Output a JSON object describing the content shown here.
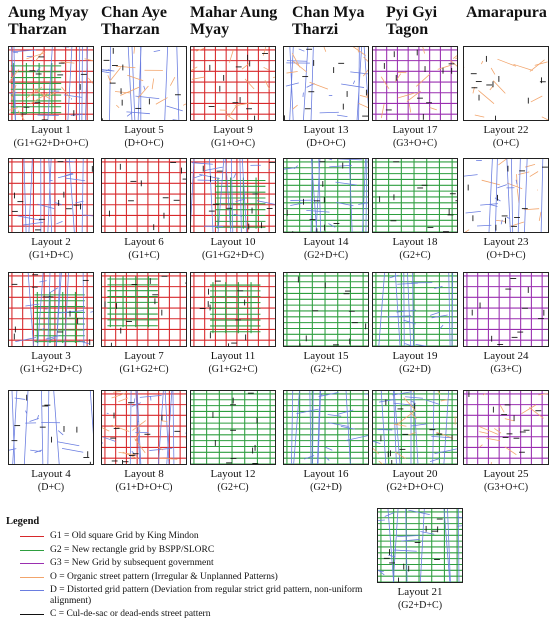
{
  "colors": {
    "G1": "#d7282b",
    "G2": "#2e9e3f",
    "G3": "#9a2fb0",
    "O": "#f2a46b",
    "D": "#6a7de0",
    "C": "#111111"
  },
  "headers": [
    "Aung Myay Tharzan",
    "Chan Aye Tharzan",
    "Mahar Aung Myay",
    "Chan Mya Tharzi",
    "Pyi Gyi Tagon",
    "Amarapura"
  ],
  "layouts": [
    {
      "label": "Layout 1",
      "code": "(G1+G2+D+O+C)",
      "mix": [
        "G1",
        "G2",
        "D",
        "O",
        "C"
      ]
    },
    {
      "label": "Layout 2",
      "code": "(G1+D+C)",
      "mix": [
        "G1",
        "D",
        "C"
      ]
    },
    {
      "label": "Layout 3",
      "code": "(G1+G2+D+C)",
      "mix": [
        "G1",
        "G2",
        "D",
        "C"
      ]
    },
    {
      "label": "Layout 4",
      "code": "(D+C)",
      "mix": [
        "D",
        "C"
      ]
    },
    {
      "label": "Layout 5",
      "code": "(D+O+C)",
      "mix": [
        "D",
        "O",
        "C"
      ]
    },
    {
      "label": "Layout 6",
      "code": "(G1+C)",
      "mix": [
        "G1",
        "C"
      ]
    },
    {
      "label": "Layout 7",
      "code": "(G1+G2+C)",
      "mix": [
        "G1",
        "G2",
        "C"
      ]
    },
    {
      "label": "Layout 8",
      "code": "(G1+D+O+C)",
      "mix": [
        "G1",
        "D",
        "O",
        "C"
      ]
    },
    {
      "label": "Layout 9",
      "code": "(G1+O+C)",
      "mix": [
        "G1",
        "O",
        "C"
      ]
    },
    {
      "label": "Layout 10",
      "code": "(G1+G2+D+C)",
      "mix": [
        "G1",
        "G2",
        "D",
        "C"
      ]
    },
    {
      "label": "Layout 11",
      "code": "(G1+G2+C)",
      "mix": [
        "G1",
        "G2",
        "C"
      ]
    },
    {
      "label": "Layout 12",
      "code": "(G2+C)",
      "mix": [
        "G2",
        "C"
      ]
    },
    {
      "label": "Layout 13",
      "code": "(D+O+C)",
      "mix": [
        "D",
        "O",
        "C"
      ]
    },
    {
      "label": "Layout 14",
      "code": "(G2+D+C)",
      "mix": [
        "G2",
        "D",
        "C"
      ]
    },
    {
      "label": "Layout 15",
      "code": "(G2+C)",
      "mix": [
        "G2",
        "C"
      ]
    },
    {
      "label": "Layout 16",
      "code": "(G2+D)",
      "mix": [
        "G2",
        "D"
      ]
    },
    {
      "label": "Layout 17",
      "code": "(G3+O+C)",
      "mix": [
        "G3",
        "O",
        "C"
      ]
    },
    {
      "label": "Layout 18",
      "code": "(G2+C)",
      "mix": [
        "G2",
        "C"
      ]
    },
    {
      "label": "Layout 19",
      "code": "(G2+D)",
      "mix": [
        "G2",
        "D"
      ]
    },
    {
      "label": "Layout 20",
      "code": "(G2+D+O+C)",
      "mix": [
        "G2",
        "D",
        "O",
        "C"
      ]
    },
    {
      "label": "Layout 21",
      "code": "(G2+D+C)",
      "mix": [
        "G2",
        "D",
        "C"
      ]
    },
    {
      "label": "Layout 22",
      "code": "(O+C)",
      "mix": [
        "O",
        "C"
      ]
    },
    {
      "label": "Layout 23",
      "code": "(O+D+C)",
      "mix": [
        "O",
        "D",
        "C"
      ]
    },
    {
      "label": "Layout 24",
      "code": "(G3+C)",
      "mix": [
        "G3",
        "C"
      ]
    },
    {
      "label": "Layout 25",
      "code": "(G3+O+C)",
      "mix": [
        "G3",
        "O",
        "C"
      ]
    }
  ],
  "legend": {
    "title": "Legend",
    "items": [
      {
        "key": "G1",
        "text": "G1 = Old square Grid by King Mindon"
      },
      {
        "key": "G2",
        "text": "G2 = New rectangle grid by BSPP/SLORC"
      },
      {
        "key": "G3",
        "text": "G3 = New Grid by subsequent government"
      },
      {
        "key": "O",
        "text": "O = Organic street pattern (Irregular & Unplanned Patterns)"
      },
      {
        "key": "D",
        "text": "D = Distorted grid pattern (Deviation from regular strict grid pattern, non-uniform alignment)"
      },
      {
        "key": "C",
        "text": "C = Cul-de-sac or dead-ends street pattern"
      }
    ]
  }
}
